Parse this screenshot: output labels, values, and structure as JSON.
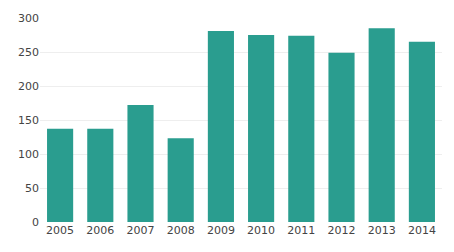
{
  "chart_data": {
    "type": "bar",
    "categories": [
      "2005",
      "2006",
      "2007",
      "2008",
      "2009",
      "2010",
      "2011",
      "2012",
      "2013",
      "2014"
    ],
    "values": [
      137,
      137,
      172,
      123,
      281,
      275,
      274,
      249,
      285,
      265
    ],
    "color": "#2A9D8F",
    "ylim": [
      0,
      300
    ],
    "yticks": [
      0,
      50,
      100,
      150,
      200,
      250,
      300
    ],
    "grid": true
  }
}
